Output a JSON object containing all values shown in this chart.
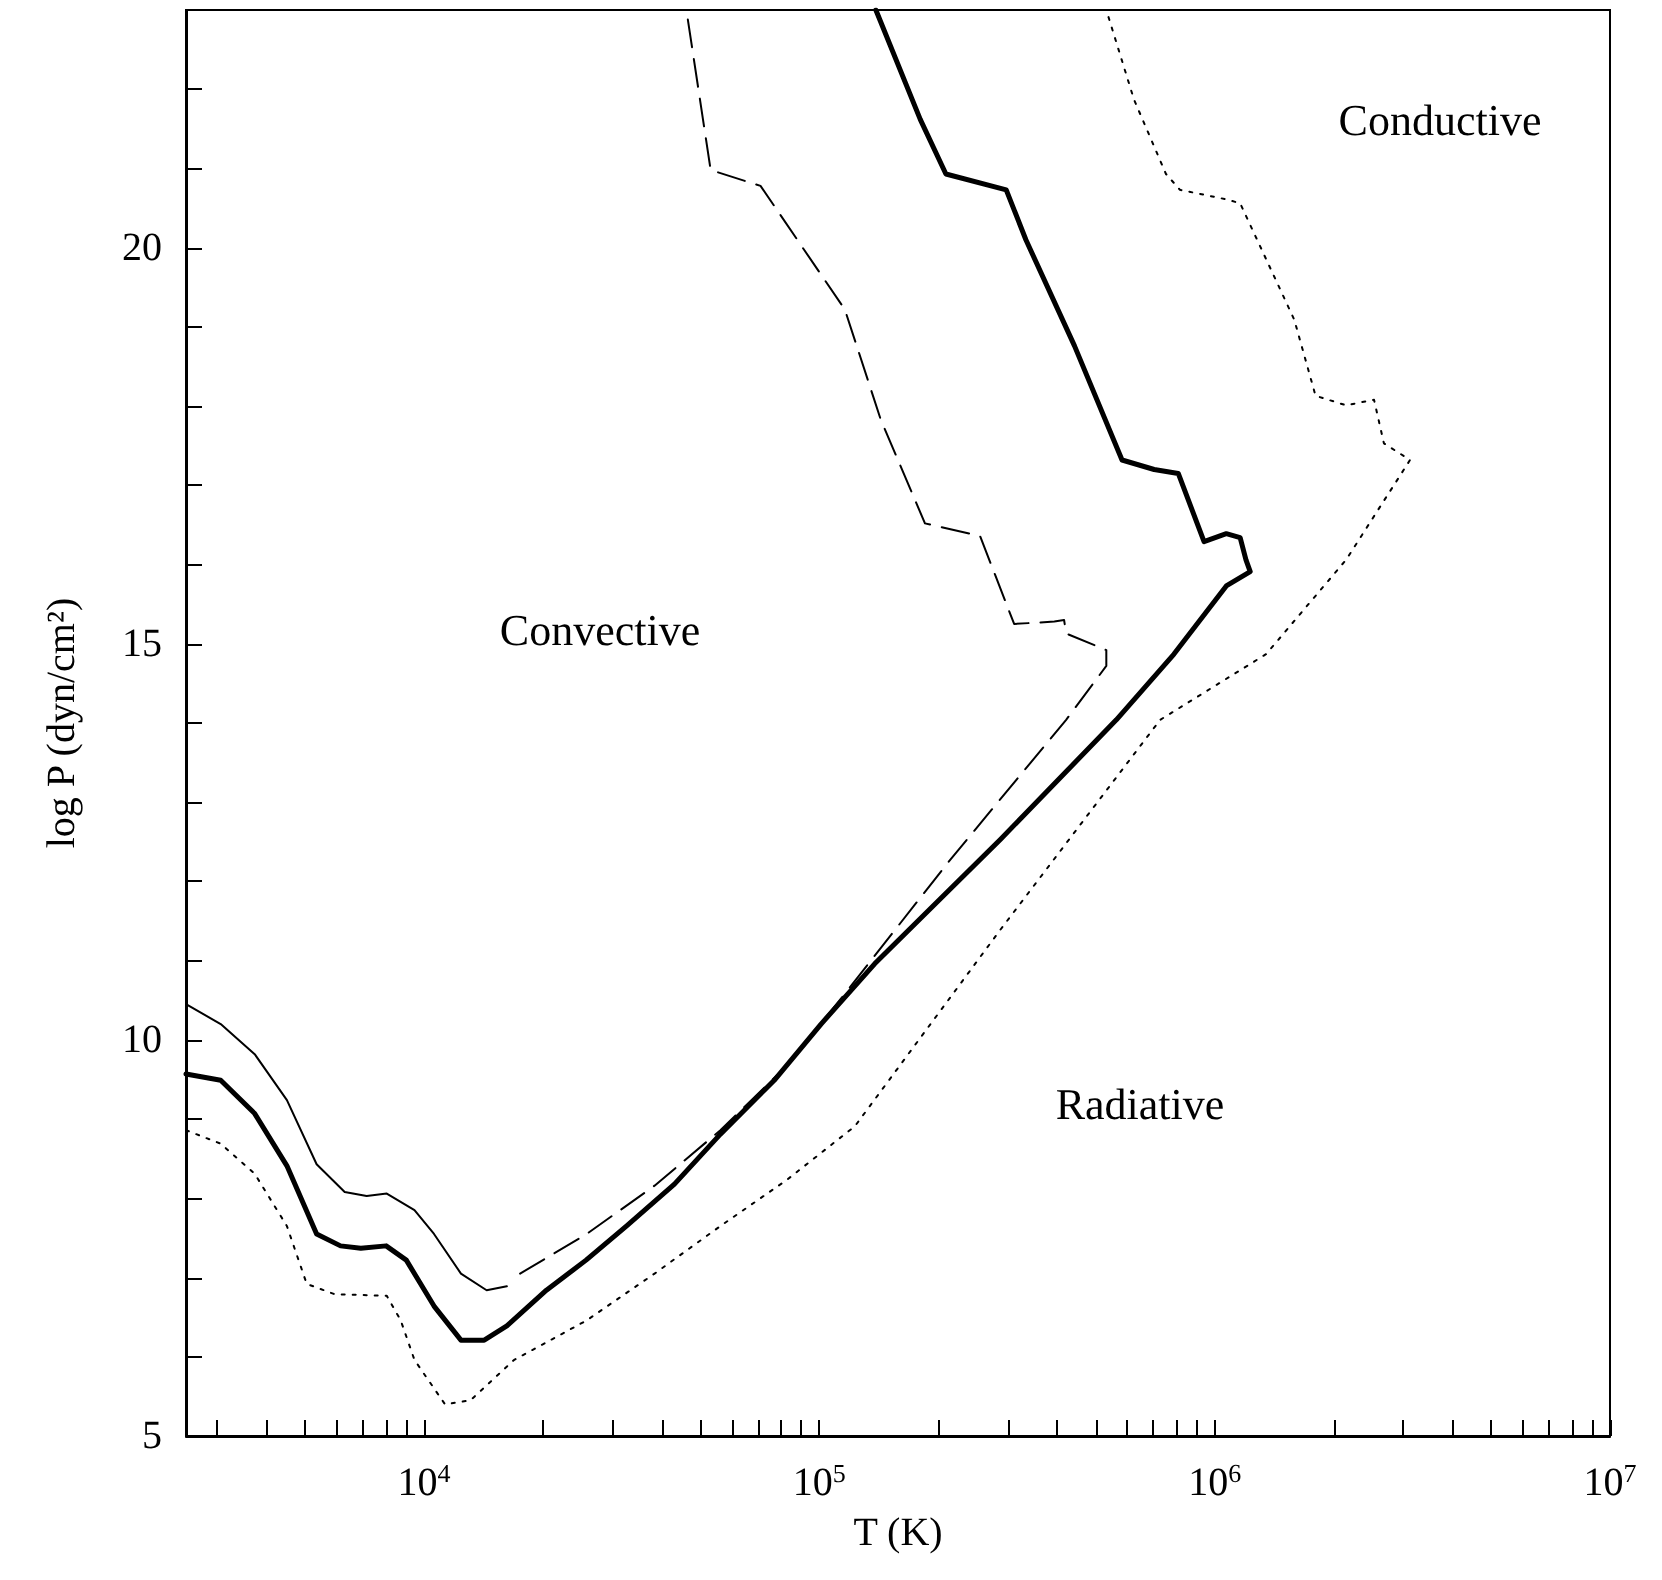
{
  "chart_data": {
    "type": "line",
    "xlabel": "T (K)",
    "ylabel": "log P (dyn/cm²)",
    "log": "x",
    "grid": false,
    "marker": "none",
    "xlim": [
      2500,
      10000000
    ],
    "ylim": [
      5,
      23
    ],
    "xticks": [
      {
        "value": 3000,
        "label": null
      },
      {
        "value": 4000,
        "label": null
      },
      {
        "value": 5000,
        "label": null
      },
      {
        "value": 6000,
        "label": null
      },
      {
        "value": 7000,
        "label": null
      },
      {
        "value": 8000,
        "label": null
      },
      {
        "value": 9000,
        "label": null
      },
      {
        "value": 10000,
        "label": "10$^{4}$"
      },
      {
        "value": 20000,
        "label": null
      },
      {
        "value": 30000,
        "label": null
      },
      {
        "value": 40000,
        "label": null
      },
      {
        "value": 50000,
        "label": null
      },
      {
        "value": 60000,
        "label": null
      },
      {
        "value": 70000,
        "label": null
      },
      {
        "value": 80000,
        "label": null
      },
      {
        "value": 90000,
        "label": null
      },
      {
        "value": 100000,
        "label": "10$^{5}$"
      },
      {
        "value": 200000,
        "label": null
      },
      {
        "value": 300000,
        "label": null
      },
      {
        "value": 400000,
        "label": null
      },
      {
        "value": 500000,
        "label": null
      },
      {
        "value": 600000,
        "label": null
      },
      {
        "value": 700000,
        "label": null
      },
      {
        "value": 800000,
        "label": null
      },
      {
        "value": 900000,
        "label": null
      },
      {
        "value": 1000000,
        "label": "10$^{6}$"
      },
      {
        "value": 2000000,
        "label": null
      },
      {
        "value": 3000000,
        "label": null
      },
      {
        "value": 4000000,
        "label": null
      },
      {
        "value": 5000000,
        "label": null
      },
      {
        "value": 6000000,
        "label": null
      },
      {
        "value": 7000000,
        "label": null
      },
      {
        "value": 8000000,
        "label": null
      },
      {
        "value": 9000000,
        "label": null
      },
      {
        "value": 10000000,
        "label": "10$^{7}$"
      }
    ],
    "yticks": [
      5,
      {
        "value": 6,
        "label": null
      },
      {
        "value": 7,
        "label": null
      },
      {
        "value": 8,
        "label": null
      },
      {
        "value": 9,
        "label": null
      },
      10,
      {
        "value": 11,
        "label": null
      },
      {
        "value": 12,
        "label": null
      },
      {
        "value": 13,
        "label": null
      },
      {
        "value": 14,
        "label": null
      },
      15,
      {
        "value": 16,
        "label": null
      },
      {
        "value": 17,
        "label": null
      },
      {
        "value": 18,
        "label": null
      },
      {
        "value": 19,
        "label": null
      },
      20,
      {
        "value": 21,
        "label": null
      },
      {
        "value": 22,
        "label": null
      }
    ],
    "series": [
      {
        "color": "#000000",
        "line_style": "solid",
        "x": [
          2500,
          3060,
          3730,
          4500,
          5350,
          6150,
          6920,
          8020,
          9020,
          10600,
          12400,
          14200,
          16200,
          20400,
          25700,
          32500,
          43000,
          56200,
          76900,
          101000,
          138000,
          287000,
          564000,
          789000,
          1070000,
          1230000,
          1200000,
          1160000,
          1070000,
          940000,
          809000,
          703000,
          583000,
          442000,
          333000,
          297000,
          209000,
          180000,
          139000
        ],
        "values": [
          9.57,
          9.49,
          9.07,
          8.41,
          7.55,
          7.4,
          7.37,
          7.4,
          7.22,
          6.64,
          6.21,
          6.21,
          6.39,
          6.84,
          7.22,
          7.65,
          8.18,
          8.81,
          9.49,
          10.2,
          10.96,
          12.53,
          14.04,
          14.87,
          15.73,
          15.91,
          16.06,
          16.34,
          16.39,
          16.29,
          17.15,
          17.2,
          17.32,
          18.76,
          20.1,
          20.73,
          20.93,
          21.62,
          23
        ]
      },
      {
        "color": "#000000",
        "line_style": "solid",
        "x": [
          2500,
          3060,
          3730,
          4500,
          5350,
          6300,
          7160,
          8050,
          9460,
          10600,
          12400,
          14400,
          16200
        ],
        "values": [
          10.45,
          10.2,
          9.82,
          9.24,
          8.43,
          8.08,
          8.03,
          8.06,
          7.85,
          7.55,
          7.05,
          6.84,
          6.89
        ]
      },
      {
        "color": "#000000",
        "line_style": "dashed",
        "x": [
          17500,
          25800,
          38300,
          56200,
          82600,
          113000,
          214000,
          421000,
          532000,
          532000,
          421000,
          416000,
          393000,
          311000,
          255000,
          185000,
          143000,
          116000,
          71000,
          53100,
          46100
        ],
        "values": [
          7.05,
          7.55,
          8.16,
          8.86,
          9.67,
          10.51,
          12.27,
          14.04,
          14.72,
          14.92,
          15.13,
          15.3,
          15.28,
          15.25,
          16.36,
          16.52,
          17.83,
          19.22,
          20.78,
          20.98,
          23
        ]
      },
      {
        "color": "#000000",
        "line_style": "dotted",
        "x": [
          2500,
          3060,
          3730,
          4500,
          5050,
          5940,
          8050,
          8730,
          9460,
          11300,
          13100,
          16900,
          25800,
          38300,
          56200,
          82600,
          123000,
          287000,
          728000,
          1350000,
          2150000,
          3120000,
          2680000,
          2530000,
          2150000,
          1800000,
          1590000,
          1160000,
          1070000,
          817000,
          753000,
          625000,
          532000
        ],
        "values": [
          8.86,
          8.69,
          8.31,
          7.65,
          6.92,
          6.79,
          6.77,
          6.46,
          5.96,
          5.4,
          5.45,
          5.96,
          6.46,
          7.05,
          7.65,
          8.23,
          8.91,
          11.39,
          14.04,
          14.87,
          16.06,
          17.32,
          17.53,
          18.08,
          18.01,
          18.13,
          19.09,
          20.56,
          20.61,
          20.73,
          20.93,
          21.87,
          23
        ]
      }
    ],
    "annotations": [
      "Conductive",
      "Convective",
      "Radiative"
    ]
  }
}
